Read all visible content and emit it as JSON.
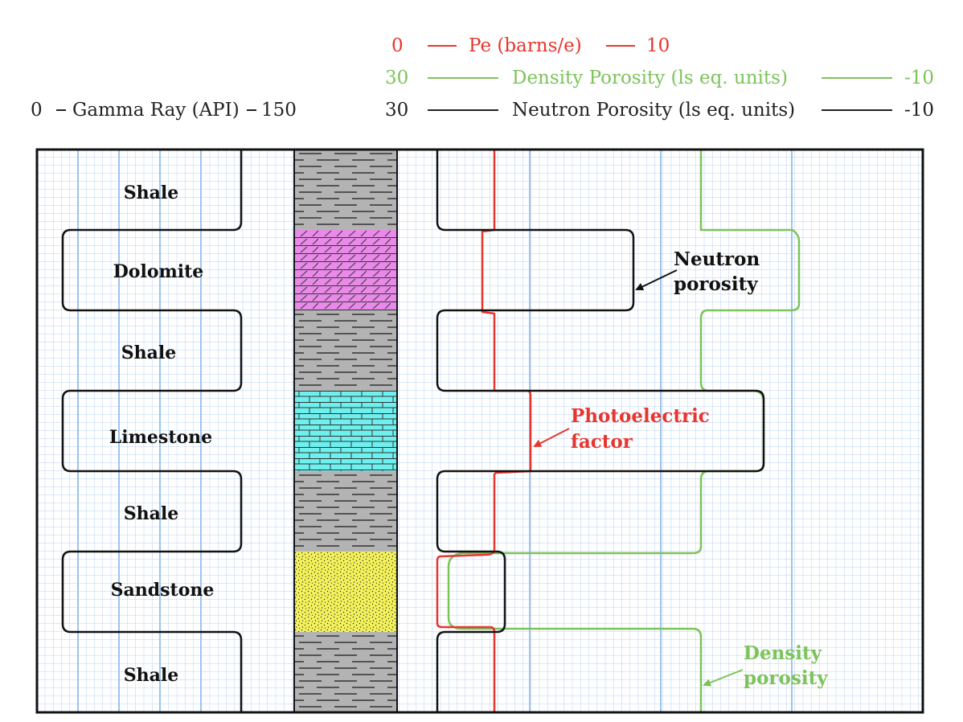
{
  "header": {
    "pe": {
      "left": "0",
      "label": "Pe (barns/e)",
      "right": "10"
    },
    "density": {
      "left": "30",
      "label": "Density Porosity (ls eq. units)",
      "right": "-10"
    },
    "neutron": {
      "left": "30",
      "label": "Neutron Porosity (ls eq. units)",
      "right": "-10"
    },
    "gamma": {
      "left": "0",
      "label": "Gamma Ray (API)",
      "right": "150"
    }
  },
  "lithology": [
    {
      "name": "Shale",
      "pattern": "shale"
    },
    {
      "name": "Dolomite",
      "pattern": "dolomite"
    },
    {
      "name": "Shale",
      "pattern": "shale"
    },
    {
      "name": "Limestone",
      "pattern": "limestone"
    },
    {
      "name": "Shale",
      "pattern": "shale"
    },
    {
      "name": "Sandstone",
      "pattern": "sandstone"
    },
    {
      "name": "Shale",
      "pattern": "shale"
    }
  ],
  "annotations": {
    "neutron": [
      "Neutron",
      "porosity"
    ],
    "pe": [
      "Photoelectric",
      "factor"
    ],
    "density": [
      "Density",
      "porosity"
    ]
  },
  "colors": {
    "pe": "#e8352e",
    "density": "#7cc35a",
    "neutron": "#111111",
    "shale": "#b3b3b3",
    "dolomite": "#e98ae9",
    "limestone": "#6ef0ee",
    "sandstone": "#f3f15a",
    "grid_minor": "#b6d0f0",
    "grid_major": "#9ec3ee"
  }
}
